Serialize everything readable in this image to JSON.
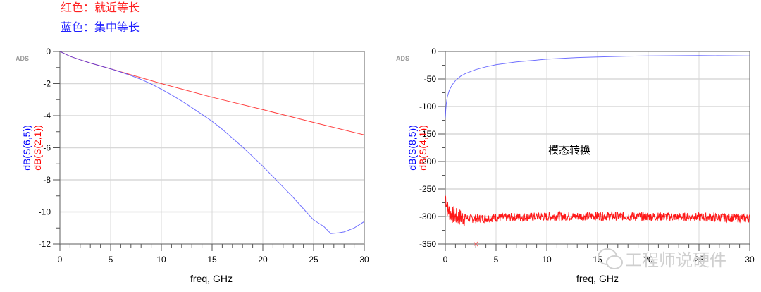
{
  "notes": {
    "red": "红色：就近等长",
    "blue": "蓝色：集中等长"
  },
  "colors": {
    "red": "#ff0000",
    "blue": "#4040ff",
    "grid": "#d8d8d8",
    "axis": "#777777"
  },
  "watermark": "工程师说硬件",
  "chart_data": [
    {
      "type": "line",
      "title": "",
      "brand": "ADS",
      "xlabel": "freq, GHz",
      "ylabel_series": [
        "dB(S(6,5))",
        "dB(S(2,1))"
      ],
      "xlim": [
        0,
        30
      ],
      "ylim": [
        -12,
        0
      ],
      "xticks": [
        "0",
        "5",
        "10",
        "15",
        "20",
        "25",
        "30"
      ],
      "yticks": [
        "0",
        "-2",
        "-4",
        "-6",
        "-8",
        "-10",
        "-12"
      ],
      "grid": true,
      "series": [
        {
          "name": "dB(S(6,5))",
          "color": "#4040ff",
          "x": [
            0,
            1,
            2,
            3,
            4,
            5,
            6,
            7,
            8,
            9,
            10,
            11,
            12,
            13,
            14,
            15,
            16,
            17,
            18,
            19,
            20,
            21,
            22,
            23,
            24,
            25,
            26,
            26.7,
            27.5,
            28,
            29,
            30
          ],
          "y": [
            0,
            -0.3,
            -0.52,
            -0.72,
            -0.9,
            -1.08,
            -1.28,
            -1.5,
            -1.74,
            -2.02,
            -2.35,
            -2.7,
            -3.08,
            -3.5,
            -3.92,
            -4.35,
            -4.85,
            -5.4,
            -5.95,
            -6.55,
            -7.15,
            -7.8,
            -8.45,
            -9.1,
            -9.8,
            -10.5,
            -10.9,
            -11.35,
            -11.3,
            -11.25,
            -11.0,
            -10.6
          ]
        },
        {
          "name": "dB(S(2,1))",
          "color": "#ff0000",
          "x": [
            0,
            1,
            2,
            3,
            4,
            5,
            10,
            15,
            20,
            25,
            30
          ],
          "y": [
            0,
            -0.3,
            -0.52,
            -0.72,
            -0.9,
            -1.08,
            -2.0,
            -2.85,
            -3.62,
            -4.42,
            -5.2
          ]
        }
      ]
    },
    {
      "type": "line",
      "title": "",
      "brand": "ADS",
      "annotation": "模态转换",
      "xlabel": "freq, GHz",
      "ylabel_series": [
        "dB(S(8,5))",
        "dB(S(4,1))"
      ],
      "xlim": [
        0,
        30
      ],
      "ylim": [
        -350,
        0
      ],
      "xticks": [
        "0",
        "5",
        "10",
        "15",
        "20",
        "25",
        "30"
      ],
      "yticks": [
        "0",
        "-50",
        "-100",
        "-150",
        "-200",
        "-250",
        "-300",
        "-350"
      ],
      "grid": true,
      "marker": {
        "x": 3,
        "y": -350,
        "symbol": "x",
        "color": "#ff6060"
      },
      "series": [
        {
          "name": "dB(S(8,5))",
          "color": "#4040ff",
          "x": [
            0,
            0.05,
            0.1,
            0.2,
            0.4,
            0.7,
            1,
            1.5,
            2,
            3,
            4,
            5,
            7,
            10,
            13,
            15,
            18,
            20,
            25,
            30
          ],
          "y": [
            -120,
            -105,
            -95,
            -82,
            -70,
            -60,
            -53,
            -45,
            -40,
            -33,
            -28,
            -24,
            -19,
            -14,
            -11,
            -10,
            -8.5,
            -8,
            -7.5,
            -8
          ]
        },
        {
          "name": "dB(S(4,1))",
          "color": "#ff0000",
          "description": "noisy floor around -300 dB, spike near -260 at 0 GHz",
          "x": [
            0,
            0.2,
            0.5,
            1,
            2,
            3,
            5,
            10,
            15,
            20,
            25,
            30
          ],
          "y": [
            -262,
            -285,
            -295,
            -300,
            -303,
            -304,
            -302,
            -300,
            -299,
            -300,
            -301,
            -303
          ],
          "noise_amplitude": 8
        }
      ]
    }
  ]
}
